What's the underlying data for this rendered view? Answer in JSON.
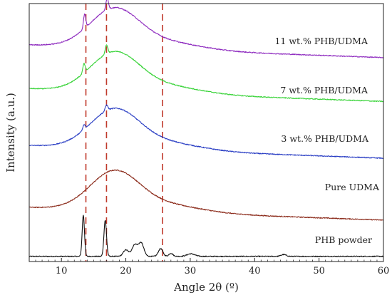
{
  "chart_data": {
    "type": "line",
    "title": "",
    "xlabel": "Angle 2θ (º)",
    "ylabel": "Intensity (a.u.)",
    "xlim": [
      5,
      60
    ],
    "x_ticks": [
      10,
      20,
      30,
      40,
      50,
      60
    ],
    "x_tick_labels": [
      "10",
      "20",
      "30",
      "40",
      "50",
      "60"
    ],
    "y_ticks_shown": false,
    "y_range": [
      0,
      100
    ],
    "grid": false,
    "reference_lines": {
      "color": "#c0392b",
      "style": "dashed",
      "x": [
        13.8,
        17.0,
        25.7
      ]
    },
    "series": [
      {
        "name": "PHB powder",
        "color": "#111111",
        "baseline": 2.0,
        "slope": 0,
        "broad": [],
        "peaks": [
          {
            "x": 13.4,
            "h": 16.0,
            "w": 0.18
          },
          {
            "x": 16.8,
            "h": 14.0,
            "w": 0.2
          },
          {
            "x": 20.0,
            "h": 2.5,
            "w": 0.4
          },
          {
            "x": 21.4,
            "h": 4.5,
            "w": 0.45
          },
          {
            "x": 22.4,
            "h": 5.0,
            "w": 0.4
          },
          {
            "x": 25.4,
            "h": 3.0,
            "w": 0.35
          },
          {
            "x": 27.0,
            "h": 1.2,
            "w": 0.3
          },
          {
            "x": 30.1,
            "h": 1.0,
            "w": 0.6
          },
          {
            "x": 44.5,
            "h": 0.7,
            "w": 0.4
          }
        ]
      },
      {
        "name": "Pure UDMA",
        "color": "#8b2a1a",
        "baseline": 21.0,
        "slope": -0.09,
        "broad": [
          {
            "x": 18.2,
            "h": 14.5,
            "w": 3.8
          },
          {
            "x": 26.0,
            "h": 3.0,
            "w": 5.5
          }
        ],
        "peaks": []
      },
      {
        "name": "3 wt.% PHB/UDMA",
        "color": "#2b3fc4",
        "baseline": 45.0,
        "slope": -0.09,
        "broad": [
          {
            "x": 18.2,
            "h": 14.5,
            "w": 3.8
          },
          {
            "x": 26.0,
            "h": 3.0,
            "w": 5.5
          }
        ],
        "peaks": [
          {
            "x": 13.5,
            "h": 1.8,
            "w": 0.18
          },
          {
            "x": 17.0,
            "h": 2.2,
            "w": 0.2
          }
        ]
      },
      {
        "name": "7 wt.% PHB/UDMA",
        "color": "#39d339",
        "baseline": 67.0,
        "slope": -0.09,
        "broad": [
          {
            "x": 18.2,
            "h": 14.5,
            "w": 3.8
          },
          {
            "x": 26.0,
            "h": 3.0,
            "w": 5.5
          }
        ],
        "peaks": [
          {
            "x": 13.5,
            "h": 3.5,
            "w": 0.18
          },
          {
            "x": 17.0,
            "h": 3.5,
            "w": 0.2
          }
        ]
      },
      {
        "name": "11 wt.% PHB/UDMA",
        "color": "#8e2bbf",
        "baseline": 84.0,
        "slope": -0.09,
        "broad": [
          {
            "x": 18.2,
            "h": 14.5,
            "w": 3.8
          },
          {
            "x": 26.0,
            "h": 3.0,
            "w": 5.5
          }
        ],
        "peaks": [
          {
            "x": 13.6,
            "h": 5.5,
            "w": 0.18
          },
          {
            "x": 17.1,
            "h": 4.5,
            "w": 0.2
          }
        ]
      }
    ]
  }
}
